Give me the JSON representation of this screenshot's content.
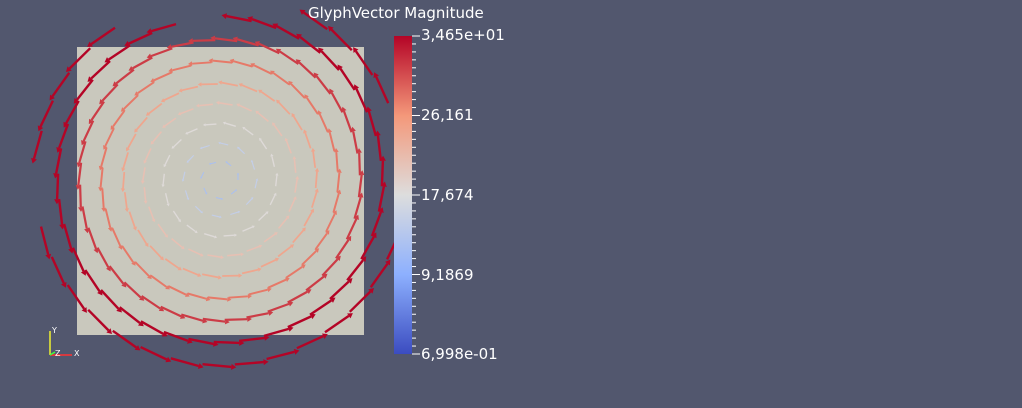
{
  "colorbar": {
    "title": "GlyphVector Magnitude",
    "labels": [
      "3,465e+01",
      "26,161",
      "17,674",
      "9,1869",
      "6,998e-01"
    ],
    "range": [
      0.6998,
      34.65
    ],
    "colormap": [
      "#3b4cc0",
      "#dddddd",
      "#b40426"
    ]
  },
  "axes_triad": {
    "x": "X",
    "y": "Y",
    "z": "Z"
  },
  "colors": {
    "background": "#52576e",
    "plane": "#c9c8bd"
  }
}
